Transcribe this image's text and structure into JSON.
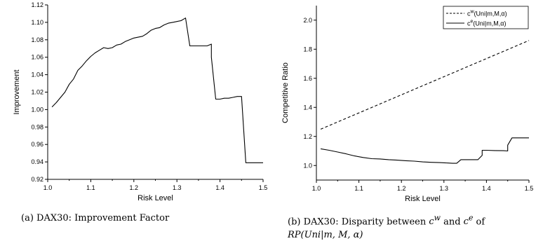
{
  "chart_data": [
    {
      "type": "line",
      "title": "",
      "xlabel": "Risk Level",
      "ylabel": "Improvement",
      "xlim": [
        1.0,
        1.5
      ],
      "ylim": [
        0.92,
        1.12
      ],
      "xticks": [
        1.0,
        1.1,
        1.2,
        1.3,
        1.4,
        1.5
      ],
      "xtick_labels": [
        "1.0",
        "1.1",
        "1.2",
        "1.3",
        "1.4",
        "1.5"
      ],
      "yticks": [
        0.92,
        0.94,
        0.96,
        0.98,
        1.0,
        1.02,
        1.04,
        1.06,
        1.08,
        1.1,
        1.12
      ],
      "ytick_labels": [
        "0.92",
        "0.94",
        "0.96",
        "0.98",
        "1.00",
        "1.02",
        "1.04",
        "1.06",
        "1.08",
        "1.10",
        "1.12"
      ],
      "grid": false,
      "series": [
        {
          "style": "solid",
          "x": [
            1.01,
            1.02,
            1.03,
            1.04,
            1.05,
            1.06,
            1.07,
            1.08,
            1.09,
            1.1,
            1.11,
            1.12,
            1.13,
            1.14,
            1.15,
            1.16,
            1.17,
            1.18,
            1.19,
            1.2,
            1.21,
            1.22,
            1.23,
            1.24,
            1.25,
            1.26,
            1.27,
            1.28,
            1.29,
            1.3,
            1.31,
            1.32,
            1.33,
            1.34,
            1.35,
            1.36,
            1.37,
            1.38,
            1.38,
            1.39,
            1.4,
            1.41,
            1.42,
            1.43,
            1.44,
            1.45,
            1.46,
            1.47,
            1.48,
            1.49,
            1.5
          ],
          "y": [
            1.003,
            1.008,
            1.014,
            1.02,
            1.029,
            1.035,
            1.045,
            1.05,
            1.056,
            1.061,
            1.065,
            1.068,
            1.071,
            1.07,
            1.071,
            1.074,
            1.075,
            1.078,
            1.08,
            1.082,
            1.083,
            1.084,
            1.087,
            1.091,
            1.093,
            1.094,
            1.097,
            1.099,
            1.1,
            1.101,
            1.102,
            1.105,
            1.073,
            1.073,
            1.073,
            1.073,
            1.073,
            1.075,
            1.06,
            1.012,
            1.012,
            1.013,
            1.013,
            1.014,
            1.015,
            1.015,
            0.939,
            0.939,
            0.939,
            0.939,
            0.939
          ]
        }
      ]
    },
    {
      "type": "line",
      "title": "",
      "xlabel": "Risk Level",
      "ylabel": "Competitive Ratio",
      "xlim": [
        1.0,
        1.5
      ],
      "ylim": [
        0.9,
        2.1
      ],
      "xticks": [
        1.0,
        1.1,
        1.2,
        1.3,
        1.4,
        1.5
      ],
      "xtick_labels": [
        "1.0",
        "1.1",
        "1.2",
        "1.3",
        "1.4",
        "1.5"
      ],
      "yticks": [
        1.0,
        1.2,
        1.4,
        1.6,
        1.8,
        2.0
      ],
      "ytick_labels": [
        "1.0",
        "1.2",
        "1.4",
        "1.6",
        "1.8",
        "2.0"
      ],
      "grid": false,
      "legend_position": "top-right",
      "series": [
        {
          "name": "c^w(Uni|m,M,α)",
          "legend_base": "c",
          "legend_sup": "w",
          "legend_rest": "(Uni|m,M,α)",
          "style": "dashed",
          "x": [
            1.01,
            1.5
          ],
          "y": [
            1.25,
            1.86
          ]
        },
        {
          "name": "c^e(Uni|m,M,α)",
          "legend_base": "c",
          "legend_sup": "e",
          "legend_rest": "(Uni|m,M,α)",
          "style": "solid",
          "x": [
            1.01,
            1.03,
            1.05,
            1.07,
            1.09,
            1.11,
            1.13,
            1.15,
            1.17,
            1.19,
            1.21,
            1.23,
            1.25,
            1.27,
            1.29,
            1.31,
            1.32,
            1.33,
            1.34,
            1.35,
            1.36,
            1.37,
            1.38,
            1.38,
            1.39,
            1.39,
            1.4,
            1.42,
            1.44,
            1.45,
            1.45,
            1.46,
            1.48,
            1.5
          ],
          "y": [
            1.115,
            1.105,
            1.093,
            1.08,
            1.066,
            1.055,
            1.047,
            1.045,
            1.04,
            1.037,
            1.033,
            1.03,
            1.025,
            1.022,
            1.02,
            1.017,
            1.015,
            1.015,
            1.04,
            1.04,
            1.04,
            1.04,
            1.04,
            1.04,
            1.07,
            1.105,
            1.105,
            1.103,
            1.102,
            1.1,
            1.14,
            1.19,
            1.19,
            1.19
          ]
        }
      ]
    }
  ],
  "captions": {
    "a": "(a) DAX30: Improvement Factor",
    "b_line1_pre": "(b) DAX30: Disparity between ",
    "b_c": "c",
    "b_w": "w",
    "b_and": " and ",
    "b_e": "e",
    "b_of": " of",
    "b_line2": "RP(Uni|m, M, α)"
  }
}
